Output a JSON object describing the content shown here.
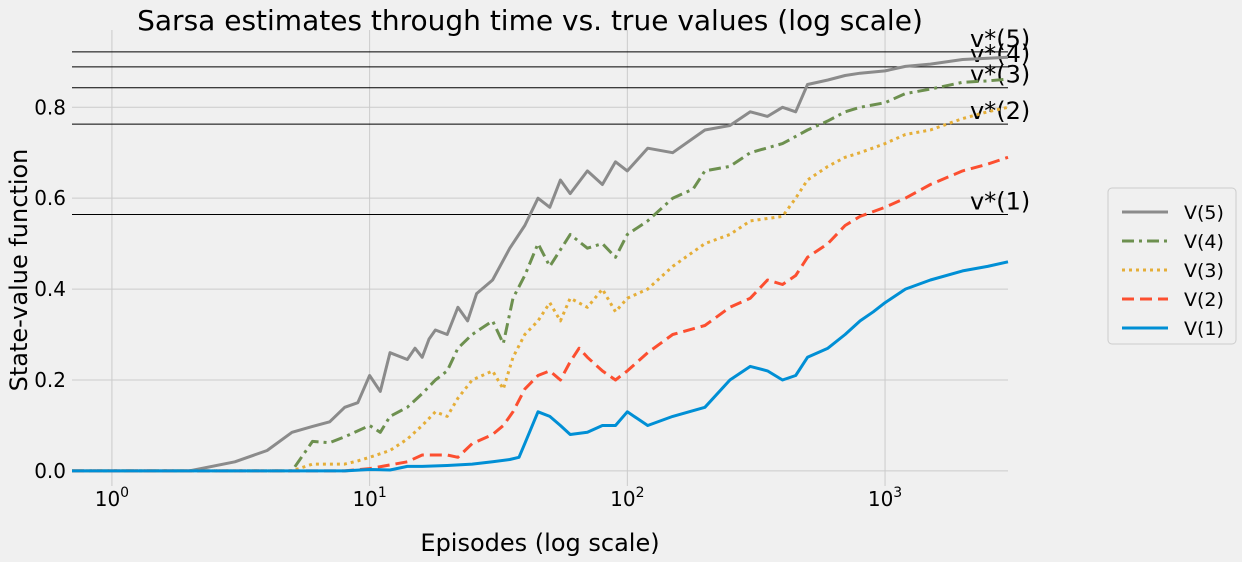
{
  "chart_data": {
    "type": "line",
    "title": "Sarsa estimates through time vs. true values (log scale)",
    "xlabel": "Episodes (log scale)",
    "ylabel": "State-value function",
    "xscale": "log",
    "xlim": [
      0.7,
      3000
    ],
    "ylim": [
      -0.02,
      0.97
    ],
    "grid": true,
    "legend_position": "right",
    "x_ticks": [
      {
        "base": "10",
        "exp": "0",
        "value": 1
      },
      {
        "base": "10",
        "exp": "1",
        "value": 10
      },
      {
        "base": "10",
        "exp": "2",
        "value": 100
      },
      {
        "base": "10",
        "exp": "3",
        "value": 1000
      }
    ],
    "y_ticks": [
      "0.0",
      "0.2",
      "0.4",
      "0.6",
      "0.8"
    ],
    "reference_lines": [
      {
        "label": "v*(5)",
        "value": 0.922
      },
      {
        "label": "v*(4)",
        "value": 0.889
      },
      {
        "label": "v*(3)",
        "value": 0.843
      },
      {
        "label": "v*(2)",
        "value": 0.763
      },
      {
        "label": "v*(1)",
        "value": 0.564
      }
    ],
    "series": [
      {
        "name": "V(5)",
        "color": "#8b8b8b",
        "dash": "solid",
        "points": [
          [
            0.7,
            0
          ],
          [
            2,
            0
          ],
          [
            3,
            0.02
          ],
          [
            4,
            0.045
          ],
          [
            5,
            0.085
          ],
          [
            6,
            0.098
          ],
          [
            7,
            0.108
          ],
          [
            8,
            0.14
          ],
          [
            9,
            0.15
          ],
          [
            10,
            0.21
          ],
          [
            11,
            0.175
          ],
          [
            12,
            0.26
          ],
          [
            14,
            0.245
          ],
          [
            15,
            0.27
          ],
          [
            16,
            0.25
          ],
          [
            17,
            0.29
          ],
          [
            18,
            0.31
          ],
          [
            20,
            0.3
          ],
          [
            22,
            0.36
          ],
          [
            24,
            0.33
          ],
          [
            26,
            0.39
          ],
          [
            30,
            0.42
          ],
          [
            35,
            0.49
          ],
          [
            40,
            0.54
          ],
          [
            45,
            0.6
          ],
          [
            50,
            0.58
          ],
          [
            55,
            0.64
          ],
          [
            60,
            0.61
          ],
          [
            70,
            0.66
          ],
          [
            80,
            0.63
          ],
          [
            90,
            0.68
          ],
          [
            100,
            0.66
          ],
          [
            120,
            0.71
          ],
          [
            150,
            0.7
          ],
          [
            200,
            0.75
          ],
          [
            250,
            0.76
          ],
          [
            300,
            0.79
          ],
          [
            350,
            0.78
          ],
          [
            400,
            0.8
          ],
          [
            450,
            0.79
          ],
          [
            500,
            0.85
          ],
          [
            600,
            0.86
          ],
          [
            700,
            0.87
          ],
          [
            800,
            0.875
          ],
          [
            1000,
            0.88
          ],
          [
            1200,
            0.89
          ],
          [
            1500,
            0.895
          ],
          [
            2000,
            0.905
          ],
          [
            2500,
            0.908
          ],
          [
            3000,
            0.91
          ]
        ]
      },
      {
        "name": "V(4)",
        "color": "#6d904f",
        "dash": "dashdot",
        "points": [
          [
            0.7,
            0
          ],
          [
            5,
            0
          ],
          [
            6,
            0.065
          ],
          [
            7,
            0.062
          ],
          [
            8,
            0.075
          ],
          [
            9,
            0.088
          ],
          [
            10,
            0.1
          ],
          [
            11,
            0.085
          ],
          [
            12,
            0.12
          ],
          [
            14,
            0.14
          ],
          [
            16,
            0.17
          ],
          [
            18,
            0.2
          ],
          [
            20,
            0.22
          ],
          [
            22,
            0.27
          ],
          [
            25,
            0.3
          ],
          [
            30,
            0.33
          ],
          [
            33,
            0.28
          ],
          [
            36,
            0.38
          ],
          [
            40,
            0.43
          ],
          [
            45,
            0.5
          ],
          [
            50,
            0.45
          ],
          [
            60,
            0.52
          ],
          [
            70,
            0.49
          ],
          [
            80,
            0.5
          ],
          [
            90,
            0.47
          ],
          [
            100,
            0.52
          ],
          [
            120,
            0.55
          ],
          [
            150,
            0.6
          ],
          [
            180,
            0.62
          ],
          [
            200,
            0.66
          ],
          [
            250,
            0.67
          ],
          [
            300,
            0.7
          ],
          [
            400,
            0.72
          ],
          [
            500,
            0.75
          ],
          [
            600,
            0.77
          ],
          [
            700,
            0.79
          ],
          [
            800,
            0.8
          ],
          [
            1000,
            0.81
          ],
          [
            1200,
            0.83
          ],
          [
            1500,
            0.84
          ],
          [
            2000,
            0.855
          ],
          [
            2500,
            0.858
          ],
          [
            3000,
            0.862
          ]
        ]
      },
      {
        "name": "V(3)",
        "color": "#e5ae38",
        "dash": "dotted",
        "points": [
          [
            0.7,
            0
          ],
          [
            5,
            0
          ],
          [
            6,
            0.015
          ],
          [
            8,
            0.015
          ],
          [
            9,
            0.022
          ],
          [
            10,
            0.03
          ],
          [
            12,
            0.045
          ],
          [
            14,
            0.07
          ],
          [
            16,
            0.1
          ],
          [
            18,
            0.13
          ],
          [
            20,
            0.12
          ],
          [
            22,
            0.16
          ],
          [
            25,
            0.2
          ],
          [
            30,
            0.22
          ],
          [
            33,
            0.18
          ],
          [
            36,
            0.25
          ],
          [
            40,
            0.3
          ],
          [
            45,
            0.33
          ],
          [
            50,
            0.37
          ],
          [
            55,
            0.33
          ],
          [
            60,
            0.38
          ],
          [
            70,
            0.36
          ],
          [
            80,
            0.4
          ],
          [
            90,
            0.35
          ],
          [
            100,
            0.38
          ],
          [
            120,
            0.4
          ],
          [
            150,
            0.45
          ],
          [
            200,
            0.5
          ],
          [
            250,
            0.52
          ],
          [
            300,
            0.55
          ],
          [
            400,
            0.56
          ],
          [
            450,
            0.6
          ],
          [
            500,
            0.64
          ],
          [
            600,
            0.67
          ],
          [
            700,
            0.69
          ],
          [
            800,
            0.7
          ],
          [
            1000,
            0.72
          ],
          [
            1200,
            0.74
          ],
          [
            1500,
            0.75
          ],
          [
            2000,
            0.775
          ],
          [
            2500,
            0.79
          ],
          [
            3000,
            0.8
          ]
        ]
      },
      {
        "name": "V(2)",
        "color": "#fc4f30",
        "dash": "dashed",
        "points": [
          [
            0.7,
            0
          ],
          [
            8,
            0
          ],
          [
            10,
            0.005
          ],
          [
            14,
            0.02
          ],
          [
            16,
            0.035
          ],
          [
            20,
            0.035
          ],
          [
            22,
            0.03
          ],
          [
            25,
            0.06
          ],
          [
            30,
            0.08
          ],
          [
            33,
            0.1
          ],
          [
            36,
            0.13
          ],
          [
            40,
            0.18
          ],
          [
            45,
            0.21
          ],
          [
            50,
            0.22
          ],
          [
            55,
            0.2
          ],
          [
            60,
            0.24
          ],
          [
            65,
            0.27
          ],
          [
            70,
            0.25
          ],
          [
            80,
            0.22
          ],
          [
            90,
            0.2
          ],
          [
            100,
            0.22
          ],
          [
            120,
            0.26
          ],
          [
            150,
            0.3
          ],
          [
            200,
            0.32
          ],
          [
            250,
            0.36
          ],
          [
            300,
            0.38
          ],
          [
            350,
            0.42
          ],
          [
            400,
            0.41
          ],
          [
            450,
            0.43
          ],
          [
            500,
            0.47
          ],
          [
            600,
            0.5
          ],
          [
            700,
            0.54
          ],
          [
            800,
            0.56
          ],
          [
            1000,
            0.58
          ],
          [
            1200,
            0.6
          ],
          [
            1500,
            0.63
          ],
          [
            2000,
            0.66
          ],
          [
            2500,
            0.675
          ],
          [
            3000,
            0.69
          ]
        ]
      },
      {
        "name": "V(1)",
        "color": "#008fd5",
        "dash": "solid",
        "points": [
          [
            0.7,
            0
          ],
          [
            8,
            0
          ],
          [
            10,
            0.003
          ],
          [
            12,
            0.002
          ],
          [
            14,
            0.01
          ],
          [
            16,
            0.01
          ],
          [
            20,
            0.012
          ],
          [
            25,
            0.015
          ],
          [
            30,
            0.02
          ],
          [
            35,
            0.025
          ],
          [
            38,
            0.03
          ],
          [
            40,
            0.06
          ],
          [
            45,
            0.13
          ],
          [
            50,
            0.12
          ],
          [
            55,
            0.1
          ],
          [
            60,
            0.08
          ],
          [
            70,
            0.085
          ],
          [
            80,
            0.1
          ],
          [
            90,
            0.1
          ],
          [
            100,
            0.13
          ],
          [
            120,
            0.1
          ],
          [
            150,
            0.12
          ],
          [
            200,
            0.14
          ],
          [
            250,
            0.2
          ],
          [
            300,
            0.23
          ],
          [
            350,
            0.22
          ],
          [
            400,
            0.2
          ],
          [
            450,
            0.21
          ],
          [
            500,
            0.25
          ],
          [
            600,
            0.27
          ],
          [
            700,
            0.3
          ],
          [
            800,
            0.33
          ],
          [
            900,
            0.35
          ],
          [
            1000,
            0.37
          ],
          [
            1200,
            0.4
          ],
          [
            1500,
            0.42
          ],
          [
            2000,
            0.44
          ],
          [
            2500,
            0.45
          ],
          [
            3000,
            0.46
          ]
        ]
      }
    ]
  }
}
